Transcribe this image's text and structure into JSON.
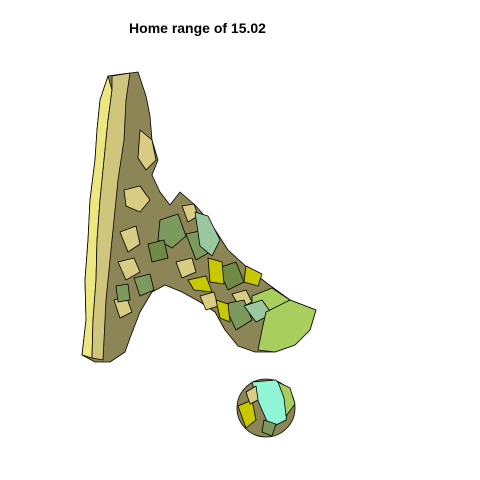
{
  "title": "Home range of 15.02",
  "colors": {
    "pale_yellow": "#ece87f",
    "tan": "#cfc57c",
    "olive_brown": "#8c8555",
    "khaki": "#d9cd85",
    "green_gray": "#7d9a5e",
    "olive_green": "#6f8a45",
    "yellow_green": "#c8c800",
    "lime": "#a8cf5e",
    "sage": "#98c7a0",
    "aquamarine": "#8ff5d6",
    "outline": "#000000"
  }
}
